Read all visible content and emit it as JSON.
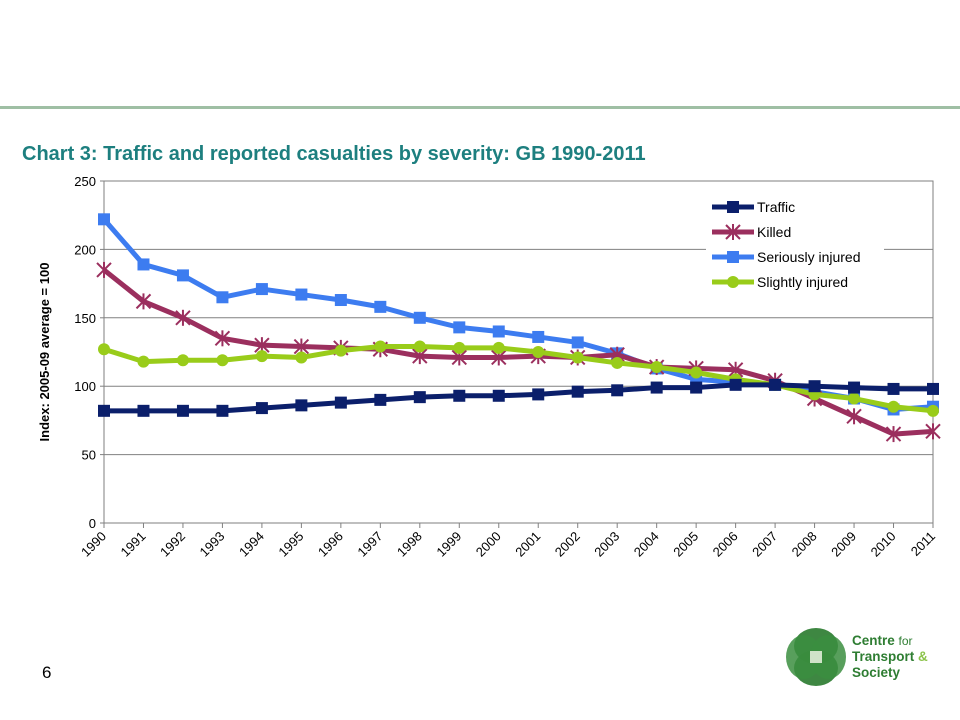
{
  "slide": {
    "title": "Chart 3: Traffic and reported casualties by severity: GB 1990-2011",
    "page_number": "6"
  },
  "logo": {
    "line1": "Centre",
    "line1b": "for",
    "line2": "Transport",
    "line2b": "&",
    "line3": "Society"
  },
  "colors": {
    "title": "#1d7f7f",
    "rule": "#9fbfa4",
    "traffic": "#0b1f6b",
    "killed": "#9b2f5e",
    "seriously": "#3d7cf0",
    "slightly": "#99cc1a",
    "logo": "#2e7d32"
  },
  "chart_data": {
    "type": "line",
    "title": "Chart 3: Traffic and reported casualties by severity: GB 1990-2011",
    "xlabel": "",
    "ylabel": "Index: 2005-09 average = 100",
    "ylim": [
      0,
      250
    ],
    "yticks": [
      0,
      50,
      100,
      150,
      200,
      250
    ],
    "grid": true,
    "legend_position": "top-right",
    "categories": [
      "1990",
      "1991",
      "1992",
      "1993",
      "1994",
      "1995",
      "1996",
      "1997",
      "1998",
      "1999",
      "2000",
      "2001",
      "2002",
      "2003",
      "2004",
      "2005",
      "2006",
      "2007",
      "2008",
      "2009",
      "2010",
      "2011"
    ],
    "series": [
      {
        "name": "Traffic",
        "marker": "square",
        "color": "#0b1f6b",
        "values": [
          82,
          82,
          82,
          82,
          84,
          86,
          88,
          90,
          92,
          93,
          93,
          94,
          96,
          97,
          99,
          99,
          101,
          101,
          100,
          99,
          98,
          98
        ]
      },
      {
        "name": "Killed",
        "marker": "x",
        "color": "#9b2f5e",
        "values": [
          185,
          162,
          150,
          135,
          130,
          129,
          128,
          127,
          122,
          121,
          121,
          122,
          121,
          123,
          114,
          113,
          112,
          104,
          91,
          78,
          65,
          67
        ]
      },
      {
        "name": "Seriously injured",
        "marker": "square",
        "color": "#3d7cf0",
        "values": [
          222,
          189,
          181,
          165,
          171,
          167,
          163,
          158,
          150,
          143,
          140,
          136,
          132,
          124,
          113,
          105,
          103,
          101,
          96,
          91,
          83,
          85
        ]
      },
      {
        "name": "Slightly injured",
        "marker": "circle",
        "color": "#99cc1a",
        "values": [
          127,
          118,
          119,
          119,
          122,
          121,
          126,
          129,
          129,
          128,
          128,
          125,
          121,
          117,
          114,
          110,
          105,
          101,
          94,
          91,
          85,
          82
        ]
      }
    ]
  }
}
